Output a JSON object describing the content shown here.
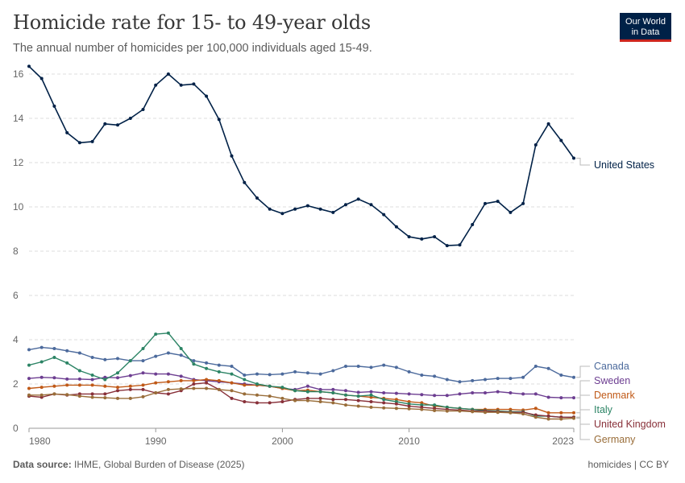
{
  "header": {
    "title": "Homicide rate for 15- to 49-year olds",
    "subtitle": "The annual number of homicides per 100,000 individuals aged 15-49."
  },
  "logo": {
    "line1": "Our World",
    "line2": "in Data"
  },
  "footer": {
    "source_label": "Data source:",
    "source_text": "IHME, Global Burden of Disease (2025)",
    "right": "homicides | CC BY"
  },
  "chart_data": {
    "type": "line",
    "title": "Homicide rate for 15- to 49-year olds",
    "xlabel": "",
    "ylabel": "",
    "xlim": [
      1980,
      2023
    ],
    "ylim": [
      0,
      16
    ],
    "y_ticks": [
      0,
      2,
      4,
      6,
      8,
      10,
      12,
      14,
      16
    ],
    "x_ticks": [
      1980,
      1990,
      2000,
      2010,
      2023
    ],
    "grid": "horizontal dashed",
    "x": [
      1980,
      1981,
      1982,
      1983,
      1984,
      1985,
      1986,
      1987,
      1988,
      1989,
      1990,
      1991,
      1992,
      1993,
      1994,
      1995,
      1996,
      1997,
      1998,
      1999,
      2000,
      2001,
      2002,
      2003,
      2004,
      2005,
      2006,
      2007,
      2008,
      2009,
      2010,
      2011,
      2012,
      2013,
      2014,
      2015,
      2016,
      2017,
      2018,
      2019,
      2020,
      2021,
      2022,
      2023
    ],
    "series": [
      {
        "name": "United States",
        "color": "#002147",
        "values": [
          16.35,
          15.8,
          14.55,
          13.35,
          12.9,
          12.95,
          13.75,
          13.7,
          14.0,
          14.4,
          15.5,
          16.0,
          15.5,
          15.55,
          15.0,
          13.95,
          12.3,
          11.1,
          10.4,
          9.9,
          9.7,
          9.9,
          10.05,
          9.9,
          9.75,
          10.1,
          10.35,
          10.1,
          9.65,
          9.1,
          8.65,
          8.55,
          8.65,
          8.25,
          8.28,
          9.2,
          10.15,
          10.25,
          9.75,
          10.15,
          12.8,
          13.75,
          13.0,
          12.2
        ]
      },
      {
        "name": "Canada",
        "color": "#4c6a9c",
        "values": [
          3.55,
          3.65,
          3.6,
          3.5,
          3.4,
          3.2,
          3.1,
          3.15,
          3.05,
          3.05,
          3.25,
          3.4,
          3.3,
          3.05,
          2.95,
          2.85,
          2.8,
          2.4,
          2.45,
          2.42,
          2.45,
          2.55,
          2.5,
          2.45,
          2.6,
          2.8,
          2.8,
          2.75,
          2.85,
          2.75,
          2.55,
          2.4,
          2.35,
          2.2,
          2.1,
          2.15,
          2.2,
          2.25,
          2.25,
          2.3,
          2.8,
          2.7,
          2.4,
          2.3
        ]
      },
      {
        "name": "Sweden",
        "color": "#6d3e91",
        "values": [
          2.25,
          2.3,
          2.28,
          2.22,
          2.22,
          2.2,
          2.3,
          2.28,
          2.38,
          2.5,
          2.45,
          2.45,
          2.35,
          2.2,
          2.15,
          2.1,
          2.05,
          2.0,
          1.95,
          1.9,
          1.8,
          1.75,
          1.9,
          1.75,
          1.75,
          1.7,
          1.62,
          1.65,
          1.6,
          1.58,
          1.55,
          1.52,
          1.48,
          1.48,
          1.55,
          1.6,
          1.6,
          1.65,
          1.6,
          1.55,
          1.55,
          1.4,
          1.38,
          1.38
        ]
      },
      {
        "name": "Denmark",
        "color": "#c05917",
        "values": [
          1.8,
          1.85,
          1.9,
          1.95,
          1.95,
          1.95,
          1.9,
          1.85,
          1.9,
          1.95,
          2.05,
          2.1,
          2.15,
          2.15,
          2.2,
          2.15,
          2.05,
          1.95,
          1.95,
          1.9,
          1.8,
          1.7,
          1.72,
          1.65,
          1.6,
          1.5,
          1.45,
          1.4,
          1.35,
          1.3,
          1.2,
          1.15,
          1.0,
          0.95,
          0.9,
          0.85,
          0.85,
          0.85,
          0.85,
          0.82,
          0.9,
          0.7,
          0.7,
          0.7
        ]
      },
      {
        "name": "Italy",
        "color": "#2c8465",
        "values": [
          2.85,
          3.0,
          3.2,
          2.95,
          2.6,
          2.4,
          2.2,
          2.5,
          3.05,
          3.6,
          4.25,
          4.3,
          3.6,
          2.9,
          2.7,
          2.55,
          2.45,
          2.2,
          2.0,
          1.9,
          1.85,
          1.7,
          1.65,
          1.65,
          1.6,
          1.5,
          1.45,
          1.5,
          1.3,
          1.2,
          1.1,
          1.05,
          1.05,
          0.95,
          0.9,
          0.85,
          0.8,
          0.78,
          0.75,
          0.75,
          0.55,
          0.55,
          0.5,
          0.5
        ]
      },
      {
        "name": "United Kingdom",
        "color": "#883039",
        "values": [
          1.45,
          1.4,
          1.55,
          1.5,
          1.55,
          1.55,
          1.55,
          1.7,
          1.75,
          1.75,
          1.6,
          1.55,
          1.7,
          2.0,
          2.05,
          1.75,
          1.35,
          1.2,
          1.15,
          1.15,
          1.2,
          1.3,
          1.35,
          1.35,
          1.3,
          1.3,
          1.25,
          1.2,
          1.15,
          1.1,
          1.0,
          0.95,
          0.9,
          0.85,
          0.82,
          0.78,
          0.78,
          0.75,
          0.72,
          0.72,
          0.6,
          0.55,
          0.5,
          0.5
        ]
      },
      {
        "name": "Germany",
        "color": "#996d39",
        "values": [
          1.5,
          1.5,
          1.55,
          1.52,
          1.45,
          1.4,
          1.38,
          1.35,
          1.35,
          1.42,
          1.6,
          1.75,
          1.78,
          1.8,
          1.8,
          1.75,
          1.7,
          1.55,
          1.5,
          1.45,
          1.35,
          1.25,
          1.25,
          1.2,
          1.15,
          1.05,
          1.0,
          0.95,
          0.92,
          0.9,
          0.88,
          0.85,
          0.8,
          0.78,
          0.78,
          0.75,
          0.72,
          0.72,
          0.7,
          0.65,
          0.5,
          0.42,
          0.42,
          0.45
        ]
      }
    ]
  }
}
